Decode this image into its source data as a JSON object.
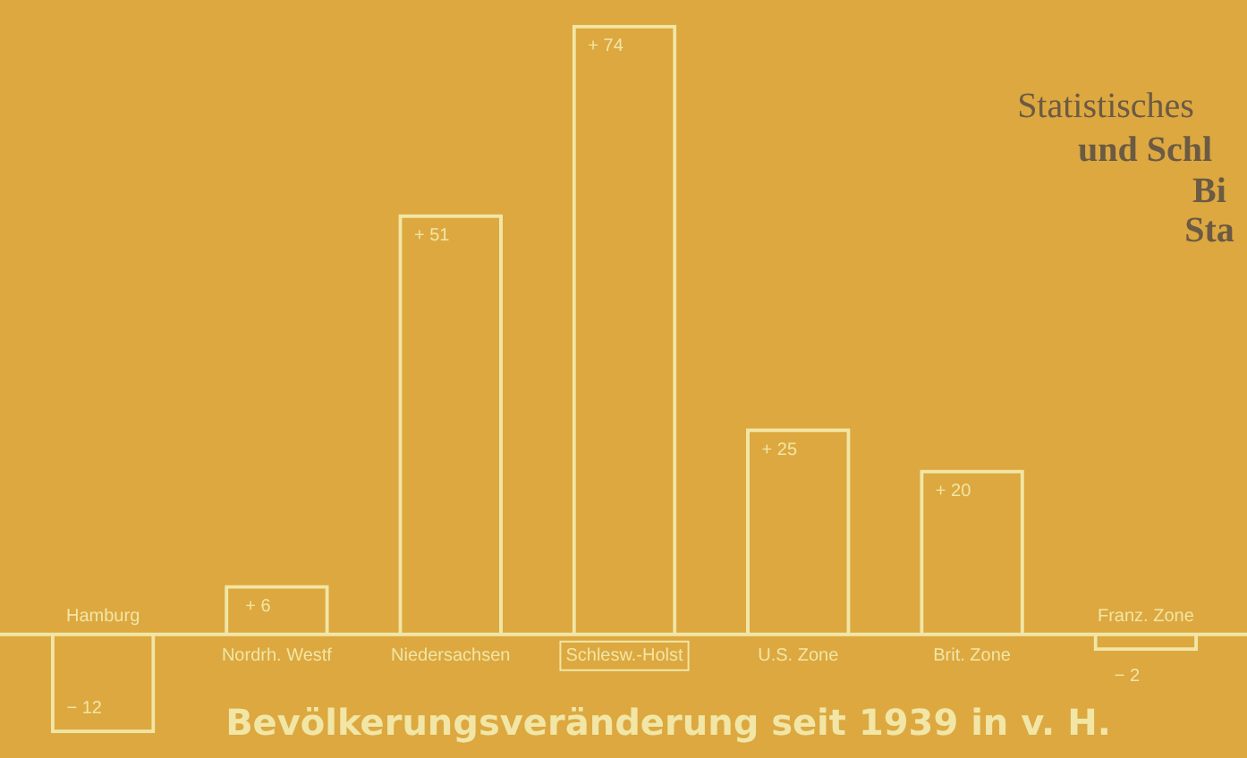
{
  "chart_data": {
    "type": "bar",
    "title": "Bevölkerungsveränderung seit 1939 in v. H.",
    "categories": [
      "Hamburg",
      "Nordrh. Westf",
      "Niedersachsen",
      "Schlesw.-Holst",
      "U.S. Zone",
      "Brit. Zone",
      "Franz. Zone"
    ],
    "values": [
      -12,
      6,
      51,
      74,
      25,
      20,
      -2
    ],
    "value_labels": [
      "− 12",
      "+ 6",
      "+ 51",
      "+ 74",
      "+ 25",
      "+ 20",
      "− 2"
    ],
    "color": "#f1e6a6",
    "ylim": [
      -15,
      77
    ],
    "annotations": [
      "Statistisches",
      "und Schl",
      "Bi",
      "Sta"
    ]
  }
}
